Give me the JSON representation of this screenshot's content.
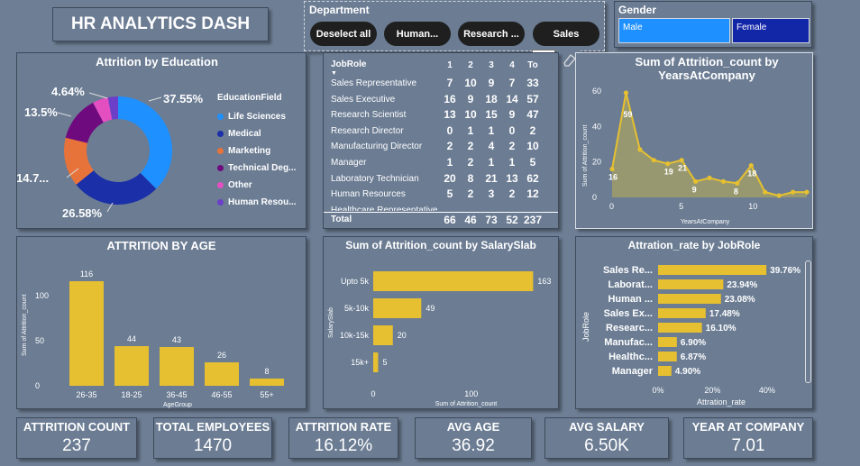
{
  "header": {
    "title": "HR ANALYTICS DASH"
  },
  "department": {
    "label": "Department",
    "buttons": [
      "Deselect all",
      "Human...",
      "Research ...",
      "Sales"
    ]
  },
  "gender": {
    "label": "Gender",
    "options": [
      "Male",
      "Female"
    ]
  },
  "toolbar": {
    "more": "..."
  },
  "colors": {
    "accent": "#e6c030",
    "male": "#1e90ff",
    "female": "#1226a8"
  },
  "education": {
    "title": "Attrition by Education",
    "legend_title": "EducationField",
    "items": [
      {
        "name": "Life Sciences",
        "color": "#1e90ff"
      },
      {
        "name": "Medical",
        "color": "#1a2fa8"
      },
      {
        "name": "Marketing",
        "color": "#e8733a"
      },
      {
        "name": "Technical Deg...",
        "color": "#6f0a7e"
      },
      {
        "name": "Other",
        "color": "#e34fc1"
      },
      {
        "name": "Human Resou...",
        "color": "#6b3fc8"
      }
    ],
    "labels": [
      "37.55%",
      "26.58%",
      "14.7...",
      "13.5%",
      "4.64%"
    ]
  },
  "jobrole": {
    "header": "JobRole",
    "columns": [
      "1",
      "2",
      "3",
      "4",
      "To"
    ],
    "rows": [
      {
        "name": "Sales Representative",
        "v": [
          "7",
          "10",
          "9",
          "7",
          "33"
        ]
      },
      {
        "name": "Sales Executive",
        "v": [
          "16",
          "9",
          "18",
          "14",
          "57"
        ]
      },
      {
        "name": "Research Scientist",
        "v": [
          "13",
          "10",
          "15",
          "9",
          "47"
        ]
      },
      {
        "name": "Research Director",
        "v": [
          "0",
          "1",
          "1",
          "0",
          "2"
        ]
      },
      {
        "name": "Manufacturing Director",
        "v": [
          "2",
          "2",
          "4",
          "2",
          "10"
        ]
      },
      {
        "name": "Manager",
        "v": [
          "1",
          "2",
          "1",
          "1",
          "5"
        ]
      },
      {
        "name": "Laboratory Technician",
        "v": [
          "20",
          "8",
          "21",
          "13",
          "62"
        ]
      },
      {
        "name": "Human Resources",
        "v": [
          "5",
          "2",
          "3",
          "2",
          "12"
        ]
      },
      {
        "name": "Healthcare Representative",
        "v": [
          "",
          "",
          "",
          "",
          ""
        ]
      }
    ],
    "total": {
      "name": "Total",
      "v": [
        "66",
        "46",
        "73",
        "52",
        "237"
      ]
    }
  },
  "chart_data": [
    {
      "type": "area",
      "title": "Sum of Attrition_count by YearsAtCompany",
      "xlabel": "YearsAtCompany",
      "ylabel": "Sum of Attrition_count",
      "x": [
        0,
        1,
        2,
        3,
        4,
        5,
        6,
        7,
        8,
        9,
        10,
        11,
        12,
        13,
        14
      ],
      "values": [
        16,
        59,
        27,
        21,
        19,
        21,
        9,
        11,
        9,
        8,
        18,
        3,
        1,
        3,
        3
      ],
      "point_labels": [
        "16",
        "59",
        "",
        "",
        "19",
        "21",
        "9",
        "",
        "",
        "8",
        "18",
        "",
        "",
        "",
        ""
      ],
      "ylim": [
        0,
        60
      ],
      "yticks": [
        "0",
        "20",
        "40",
        "60"
      ],
      "xticks": [
        "0",
        "5",
        "10"
      ]
    },
    {
      "type": "bar",
      "title": "ATTRITION BY AGE",
      "xlabel": "AgeGroup",
      "ylabel": "Sum of Attrition_count",
      "categories": [
        "26-35",
        "18-25",
        "36-45",
        "46-55",
        "55+"
      ],
      "values": [
        116,
        44,
        43,
        26,
        8
      ],
      "ylim": [
        0,
        125
      ],
      "yticks": [
        "0",
        "50",
        "100"
      ]
    },
    {
      "type": "bar",
      "title": "Sum of Attrition_count by SalarySlab",
      "xlabel": "Sum of Attrition_count",
      "ylabel": "SalarySlab",
      "categories": [
        "Upto 5k",
        "5k-10k",
        "10k-15k",
        "15k+"
      ],
      "values": [
        163,
        49,
        20,
        5
      ],
      "xlim": [
        0,
        170
      ],
      "xticks": [
        "0",
        "100"
      ]
    },
    {
      "type": "bar",
      "title": "Attration_rate by JobRole",
      "xlabel": "Attration_rate",
      "ylabel": "JobRole",
      "categories": [
        "Sales Re...",
        "Laborat...",
        "Human ...",
        "Sales Ex...",
        "Researc...",
        "Manufac...",
        "Healthc...",
        "Manager"
      ],
      "values": [
        39.76,
        23.94,
        23.08,
        17.48,
        16.1,
        6.9,
        6.87,
        4.9
      ],
      "data_labels": [
        "39.76%",
        "23.94%",
        "23.08%",
        "17.48%",
        "16.10%",
        "6.90%",
        "6.87%",
        "4.90%"
      ],
      "xlim": [
        0,
        45
      ],
      "xticks": [
        "0%",
        "20%",
        "40%"
      ]
    }
  ],
  "kpis": [
    {
      "label": "ATTRITION COUNT",
      "value": "237"
    },
    {
      "label": "TOTAL EMPLOYEES",
      "value": "1470"
    },
    {
      "label": "ATTRITION RATE",
      "value": "16.12%"
    },
    {
      "label": "AVG AGE",
      "value": "36.92"
    },
    {
      "label": "AVG SALARY",
      "value": "6.50K"
    },
    {
      "label": "YEAR AT COMPANY",
      "value": "7.01"
    }
  ]
}
